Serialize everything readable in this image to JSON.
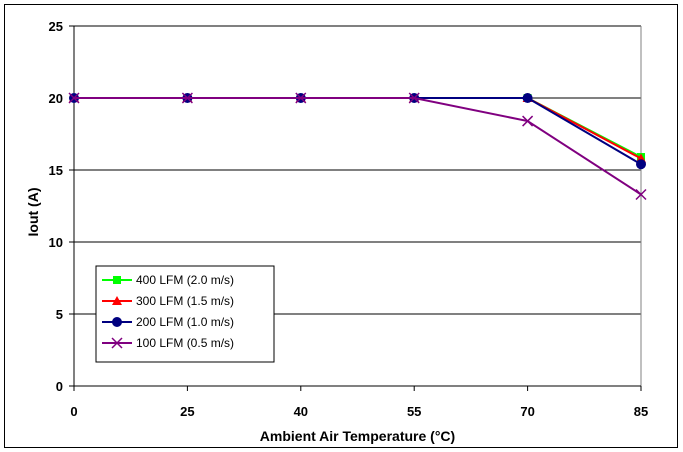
{
  "chart_data": {
    "type": "line",
    "categories": [
      "0",
      "25",
      "40",
      "55",
      "70",
      "85"
    ],
    "xlabel": "Ambient Air Temperature (°C)",
    "ylabel": "Iout (A)",
    "ylim": [
      0,
      25
    ],
    "yticks": [
      0,
      5,
      10,
      15,
      20,
      25
    ],
    "grid": "horizontal",
    "legend_position": "bottom-left",
    "series": [
      {
        "name": "400 LFM (2.0 m/s)",
        "color": "#00ff00",
        "marker": "square",
        "values": [
          20,
          20,
          20,
          20,
          20,
          15.9
        ]
      },
      {
        "name": "300 LFM (1.5 m/s)",
        "color": "#ff0000",
        "marker": "triangle",
        "values": [
          20,
          20,
          20,
          20,
          20,
          15.8
        ]
      },
      {
        "name": "200 LFM (1.0 m/s)",
        "color": "#000080",
        "marker": "circle",
        "values": [
          20,
          20,
          20,
          20,
          20,
          15.4
        ]
      },
      {
        "name": "100 LFM (0.5 m/s)",
        "color": "#800080",
        "marker": "x",
        "values": [
          20,
          20,
          20,
          20,
          18.4,
          13.3
        ]
      }
    ]
  }
}
